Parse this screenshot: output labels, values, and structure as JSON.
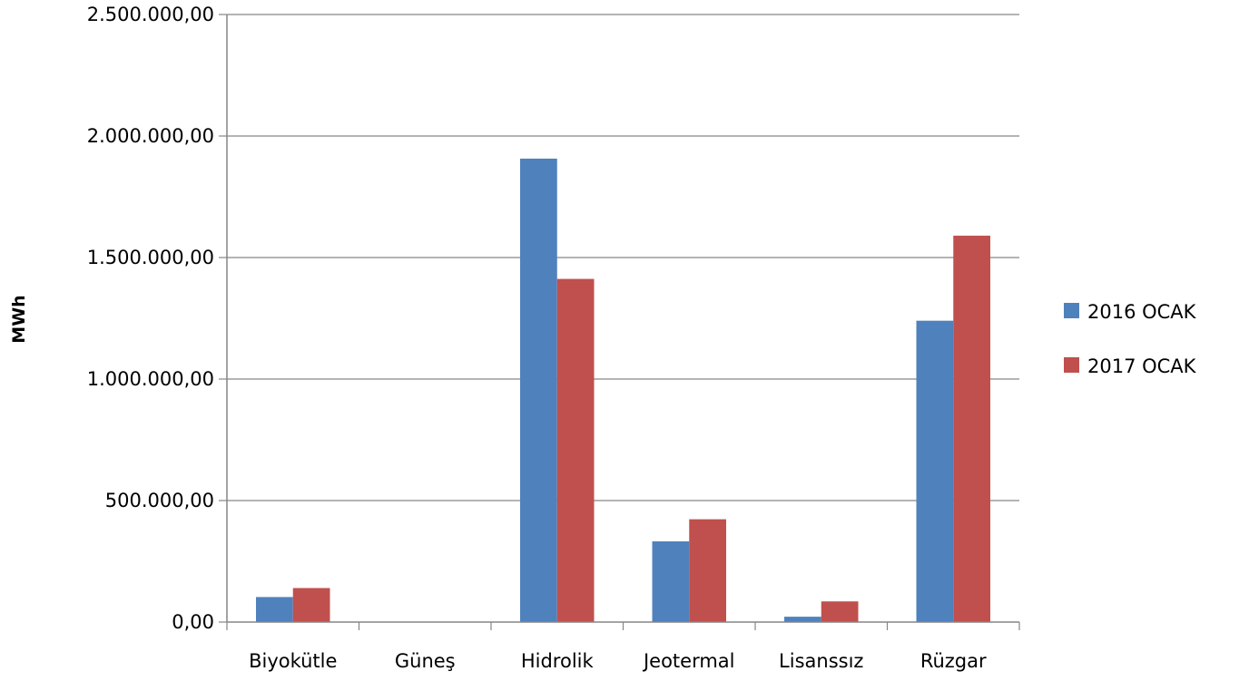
{
  "chart_data": {
    "type": "bar",
    "title": "",
    "xlabel": "",
    "ylabel": "MWh",
    "categories": [
      "Biyokütle",
      "Güneş",
      "Hidrolik",
      "Jeotermal",
      "Lisanssız",
      "Rüzgar"
    ],
    "series": [
      {
        "name": "2016 OCAK",
        "color": "#4F81BD",
        "values": [
          103000,
          0,
          1907000,
          332000,
          22000,
          1240000
        ]
      },
      {
        "name": "2017 OCAK",
        "color": "#C0504D",
        "values": [
          140000,
          0,
          1412000,
          423000,
          85000,
          1590000
        ]
      }
    ],
    "ylim": [
      0,
      2500000
    ],
    "yticks": [
      0,
      500000,
      1000000,
      1500000,
      2000000,
      2500000
    ],
    "ytick_labels": [
      "0,00",
      "500.000,00",
      "1.000.000,00",
      "1.500.000,00",
      "2.000.000,00",
      "2.500.000,00"
    ],
    "grid": true,
    "legend_position": "right"
  }
}
